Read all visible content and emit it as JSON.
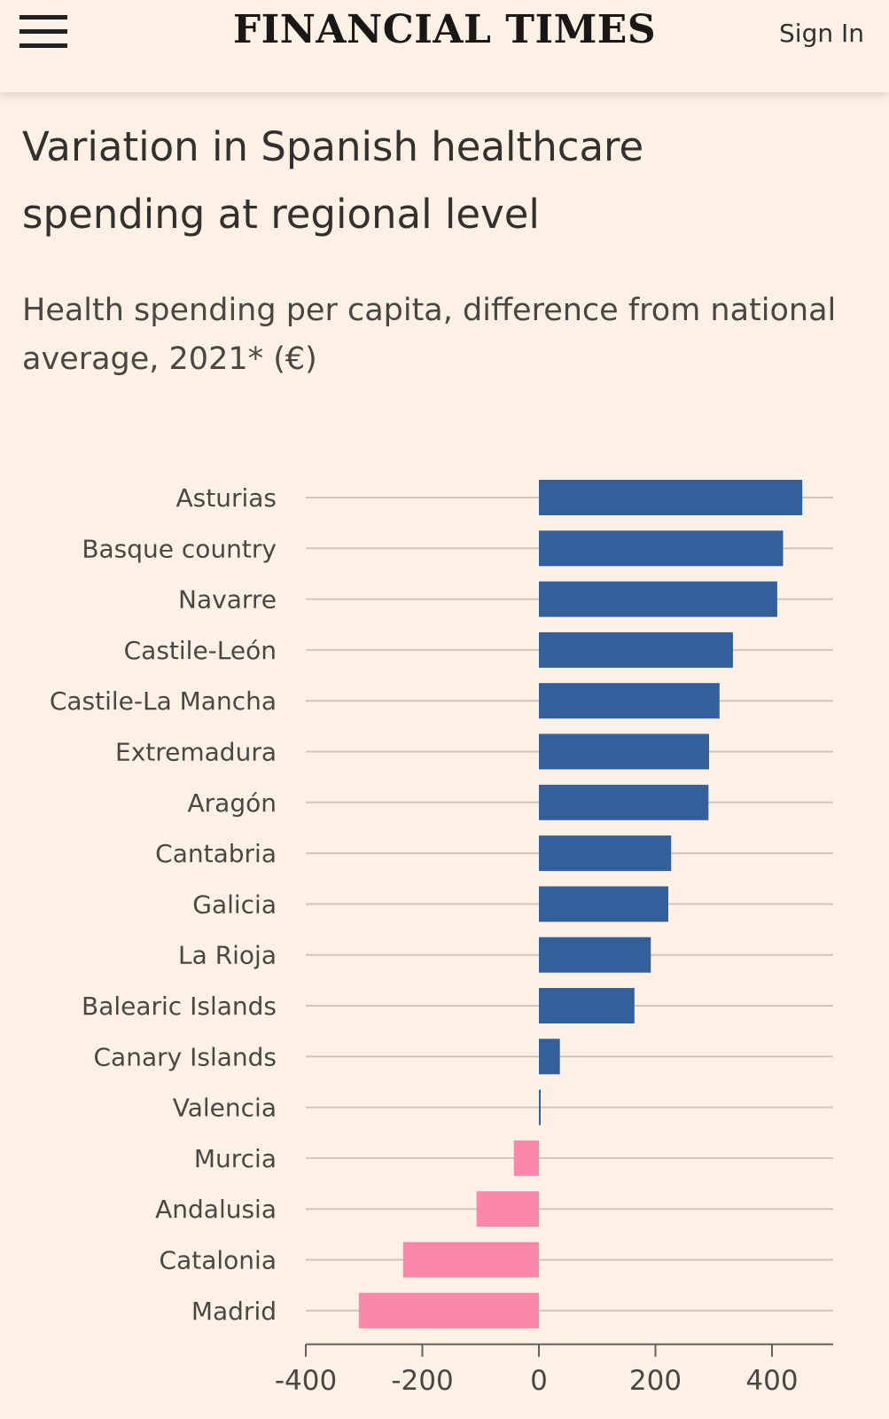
{
  "header": {
    "brand": "FINANCIAL TIMES",
    "sign_in": "Sign In",
    "menu_icon": "hamburger-menu-icon"
  },
  "chart_data": {
    "type": "bar",
    "orientation": "horizontal",
    "title": "Variation in Spanish healthcare spending at regional level",
    "subtitle": "Health spending per capita, difference from national average, 2021* (€)",
    "categories": [
      "Asturias",
      "Basque country",
      "Navarre",
      "Castile-León",
      "Castile-La Mancha",
      "Extremadura",
      "Aragón",
      "Cantabria",
      "Galicia",
      "La Rioja",
      "Balearic Islands",
      "Canary Islands",
      "Valencia",
      "Murcia",
      "Andalusia",
      "Catalonia",
      "Madrid"
    ],
    "values": [
      452,
      419,
      409,
      333,
      310,
      292,
      291,
      227,
      222,
      192,
      164,
      36,
      3,
      -43,
      -107,
      -233,
      -309
    ],
    "xlim": [
      -400,
      500
    ],
    "xticks": [
      -400,
      -200,
      0,
      200,
      400
    ],
    "xtick_labels": [
      "-400",
      "-200",
      "0",
      "200",
      "400"
    ],
    "grid": true,
    "colors": {
      "positive": "#33609a",
      "negative": "#fb87ab",
      "grid": "#cfc6bd",
      "axis": "#66605c"
    }
  }
}
